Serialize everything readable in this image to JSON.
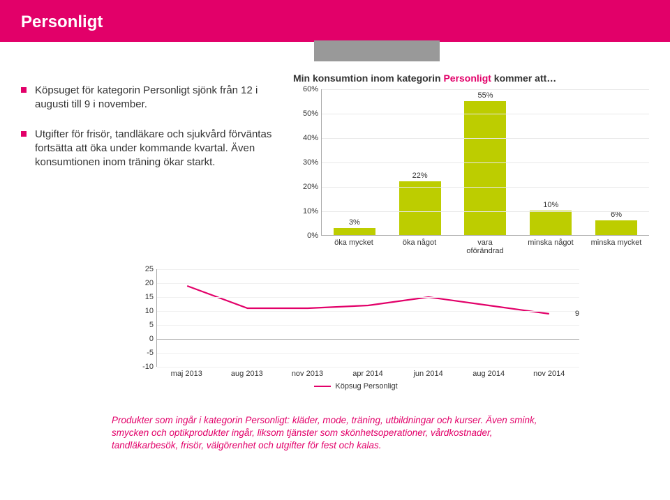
{
  "header": {
    "title": "Personligt"
  },
  "bullets": [
    "Köpsuget för kategorin Personligt sjönk från 12 i augusti till 9 i november.",
    "Utgifter för frisör, tandläkare och sjukvård förväntas fortsätta att öka under kommande kvartal. Även konsumtionen inom träning ökar starkt."
  ],
  "bar_chart": {
    "title_prefix": "Min konsumtion inom kategorin ",
    "title_accent": "Personligt",
    "title_suffix": " kommer att…",
    "y_ticks": [
      "60%",
      "50%",
      "40%",
      "30%",
      "20%",
      "10%",
      "0%"
    ],
    "y_max": 60,
    "bars": [
      {
        "label": "öka mycket",
        "value": 3,
        "display": "3%"
      },
      {
        "label": "öka något",
        "value": 22,
        "display": "22%"
      },
      {
        "label": "vara oförändrad",
        "value": 55,
        "display": "55%"
      },
      {
        "label": "minska något",
        "value": 10,
        "display": "10%"
      },
      {
        "label": "minska mycket",
        "value": 6,
        "display": "6%"
      }
    ],
    "bar_color": "#bdcd00",
    "grid_color": "#e8e8e8"
  },
  "line_chart": {
    "y_ticks": [
      25,
      20,
      15,
      10,
      5,
      0,
      -5,
      -10
    ],
    "y_max": 25,
    "y_min": -10,
    "x_labels": [
      "maj 2013",
      "aug 2013",
      "nov 2013",
      "apr 2014",
      "jun 2014",
      "aug 2014",
      "nov 2014"
    ],
    "values": [
      19,
      11,
      11,
      12,
      15,
      12,
      9
    ],
    "end_label": "9",
    "line_color": "#e20069",
    "legend": "Köpsug Personligt"
  },
  "footnote": "Produkter som ingår i kategorin Personligt: kläder, mode, träning, utbildningar och kurser. Även smink, smycken och optikprodukter ingår, liksom tjänster som skönhetsoperationer, vårdkostnader, tandläkarbesök, frisör, välgörenhet och utgifter för fest och kalas."
}
